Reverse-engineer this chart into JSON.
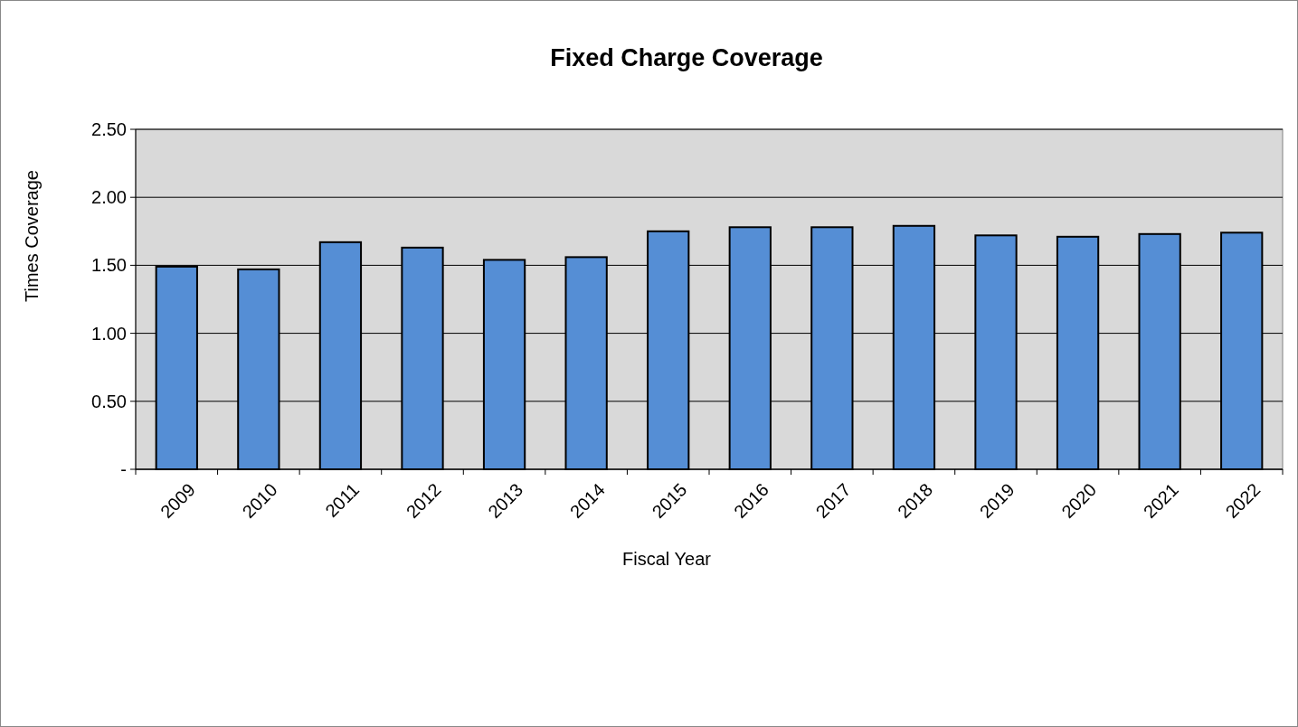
{
  "chart_data": {
    "type": "bar",
    "title": "Fixed Charge Coverage",
    "xlabel": "Fiscal Year",
    "ylabel": "Times Coverage",
    "categories": [
      "2009",
      "2010",
      "2011",
      "2012",
      "2013",
      "2014",
      "2015",
      "2016",
      "2017",
      "2018",
      "2019",
      "2020",
      "2021",
      "2022"
    ],
    "values": [
      1.49,
      1.47,
      1.67,
      1.63,
      1.54,
      1.56,
      1.75,
      1.78,
      1.78,
      1.79,
      1.72,
      1.71,
      1.73,
      1.74
    ],
    "color": "#558ed5",
    "ylim": [
      0,
      2.5
    ],
    "yticks": [
      {
        "value": 0,
        "label": "-"
      },
      {
        "value": 0.5,
        "label": "0.50"
      },
      {
        "value": 1,
        "label": "1.00"
      },
      {
        "value": 1.5,
        "label": "1.50"
      },
      {
        "value": 2,
        "label": "2.00"
      },
      {
        "value": 2.5,
        "label": "2.50"
      }
    ],
    "grid": "y"
  }
}
